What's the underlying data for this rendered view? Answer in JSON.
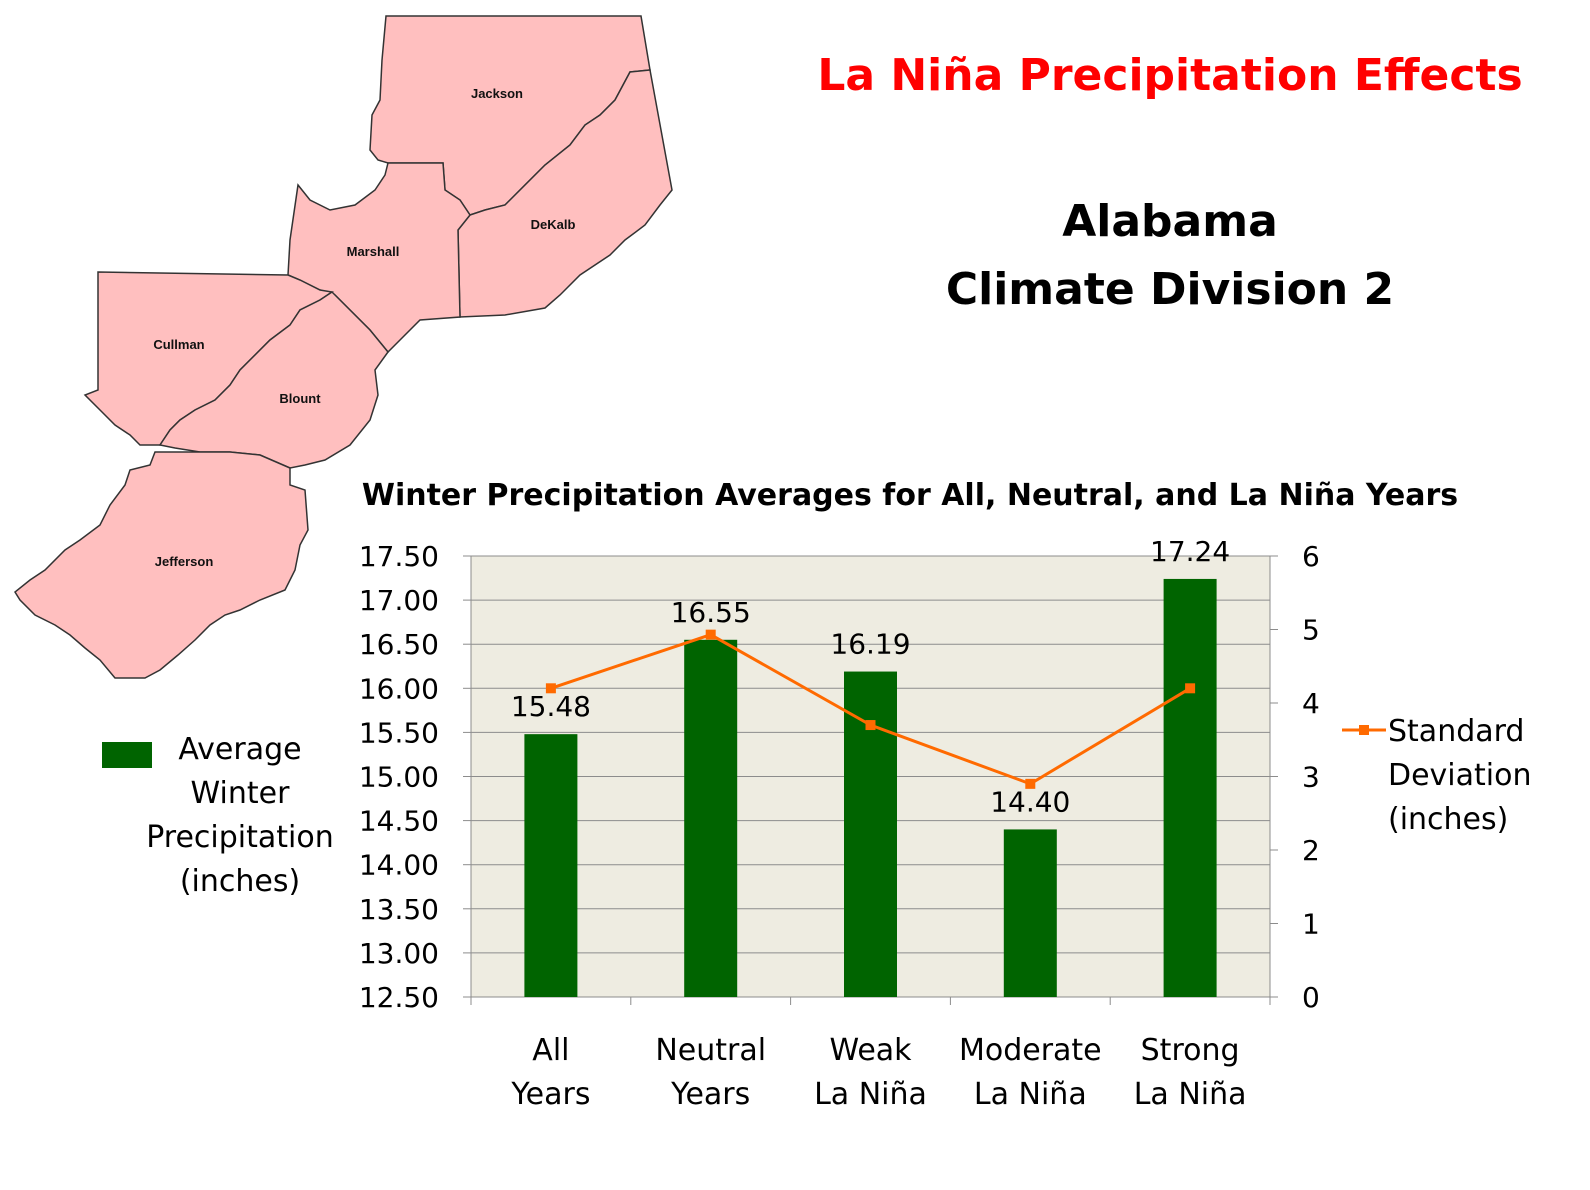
{
  "header": {
    "title": "La Niña Precipitation Effects",
    "subtitle_line1": "Alabama",
    "subtitle_line2": "Climate Division 2"
  },
  "map": {
    "fill_color": "#ffbfbf",
    "stroke_color": "#333333",
    "counties": [
      "Jackson",
      "DeKalb",
      "Marshall",
      "Cullman",
      "Blount",
      "Jefferson"
    ]
  },
  "chart_data": {
    "type": "bar",
    "title": "Winter Precipitation Averages for All, Neutral, and La Niña Years",
    "categories": [
      [
        "All",
        "Years"
      ],
      [
        "Neutral",
        "Years"
      ],
      [
        "Weak",
        "La Niña"
      ],
      [
        "Moderate",
        "La Niña"
      ],
      [
        "Strong",
        "La Niña"
      ]
    ],
    "series": [
      {
        "name": "Average Winter Precipitation (inches)",
        "name_lines": [
          "Average",
          "Winter",
          "Precipitation",
          "(inches)"
        ],
        "type": "bar",
        "axis": "left",
        "color": "#006400",
        "values": [
          15.48,
          16.55,
          16.19,
          14.4,
          17.24
        ],
        "labels": [
          "15.48",
          "16.55",
          "16.19",
          "14.40",
          "17.24"
        ]
      },
      {
        "name": "Standard Deviation (inches)",
        "name_lines": [
          "Standard",
          "Deviation",
          "(inches)"
        ],
        "type": "line",
        "axis": "right",
        "color": "#ff6a00",
        "values": [
          4.2,
          4.93,
          3.7,
          2.9,
          4.2
        ]
      }
    ],
    "left_axis": {
      "ylim": [
        12.5,
        17.5
      ],
      "ticks": [
        "17.50",
        "17.00",
        "16.50",
        "16.00",
        "15.50",
        "15.00",
        "14.50",
        "14.00",
        "13.50",
        "13.00",
        "12.50"
      ],
      "tick_values": [
        17.5,
        17.0,
        16.5,
        16.0,
        15.5,
        15.0,
        14.5,
        14.0,
        13.5,
        13.0,
        12.5
      ]
    },
    "right_axis": {
      "ylim": [
        0,
        6
      ],
      "ticks": [
        "6",
        "5",
        "4",
        "3",
        "2",
        "1",
        "0"
      ],
      "tick_values": [
        6,
        5,
        4,
        3,
        2,
        1,
        0
      ]
    },
    "plot_background": "#eeece1",
    "grid": true,
    "legend_placement": "left and right of plot"
  }
}
